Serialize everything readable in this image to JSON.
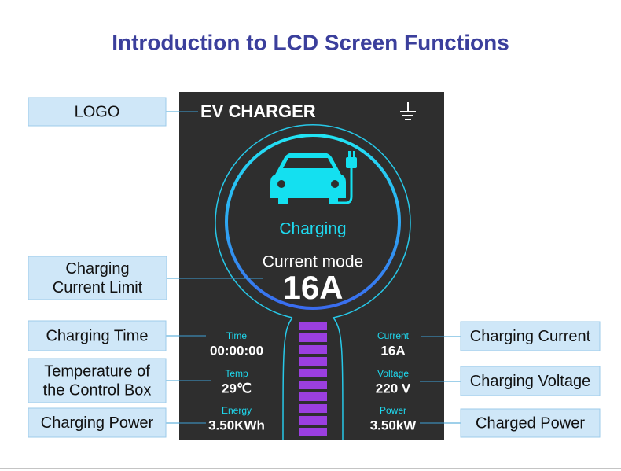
{
  "title": "Introduction to LCD Screen Functions",
  "screen": {
    "brand": "EV CHARGER",
    "status": "Charging",
    "mode_label": "Current mode",
    "mode_value": "16A",
    "readouts": [
      {
        "label": "Time",
        "value": "00:00:00"
      },
      {
        "label": "Temp",
        "value": "29℃"
      },
      {
        "label": "Energy",
        "value": "3.50KWh"
      },
      {
        "label": "Current",
        "value": "16A"
      },
      {
        "label": "Voltage",
        "value": "220 V"
      },
      {
        "label": "Power",
        "value": "3.50kW"
      }
    ]
  },
  "callouts": [
    {
      "lines": [
        "LOGO"
      ]
    },
    {
      "lines": [
        "Charging",
        "Current Limit"
      ]
    },
    {
      "lines": [
        "Charging Time"
      ]
    },
    {
      "lines": [
        "Temperature of",
        "the Control Box"
      ]
    },
    {
      "lines": [
        "Charging Power"
      ]
    },
    {
      "lines": [
        "Charging Current"
      ]
    },
    {
      "lines": [
        "Charging Voltage"
      ]
    },
    {
      "lines": [
        "Charged Power"
      ]
    }
  ]
}
